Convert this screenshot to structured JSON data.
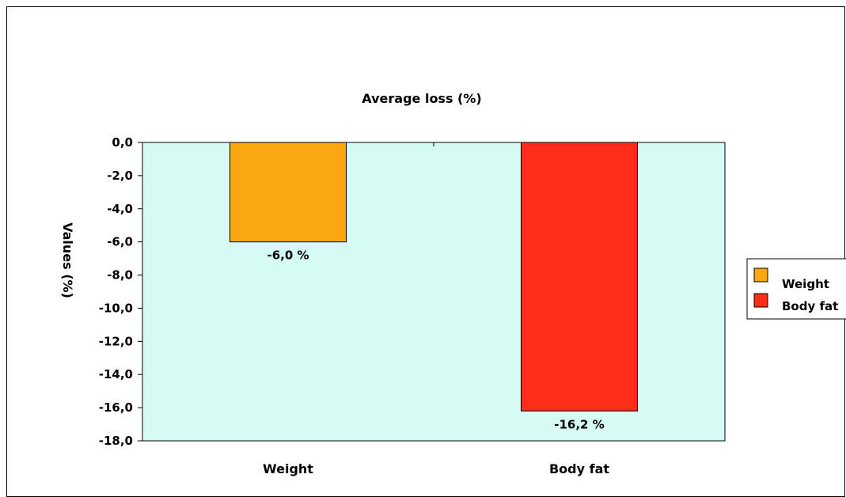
{
  "chart_data": {
    "type": "bar",
    "title": "Average loss (%)",
    "ylabel": "Values (%)",
    "xlabel": "",
    "categories": [
      "Weight",
      "Body fat"
    ],
    "values": [
      -6.0,
      -16.2
    ],
    "data_labels": [
      "-6,0 %",
      "-16,2  %"
    ],
    "colors": [
      "#f9a90f",
      "#ff2c19"
    ],
    "ylim": [
      -18,
      0
    ],
    "yticks": [
      0,
      -2,
      -4,
      -6,
      -8,
      -10,
      -12,
      -14,
      -16,
      -18
    ],
    "ytick_labels": [
      "0,0",
      "-2,0",
      "-4,0",
      "-6,0",
      "-8,0",
      "-10,0",
      "-12,0",
      "-14,0",
      "-16,0",
      "-18,0"
    ],
    "plot_background": "#d6fbf6",
    "grid": false,
    "legend": {
      "placement": "right",
      "entries": [
        "Weight",
        "Body fat"
      ]
    }
  }
}
